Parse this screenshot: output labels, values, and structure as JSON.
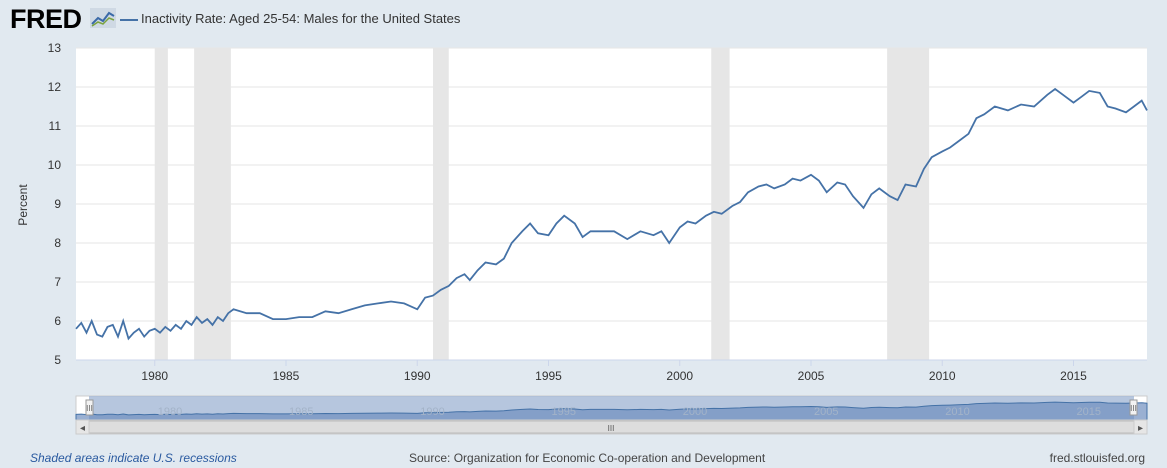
{
  "header": {
    "logo_text": "FRED",
    "logo_icon": "line-graph-icon",
    "legend_label": "Inactivity Rate: Aged 25-54: Males for the United States"
  },
  "footer": {
    "recession_note": "Shaded areas indicate U.S. recessions",
    "source": "Source: Organization for Economic Co-operation and Development",
    "site": "fred.stlouisfed.org"
  },
  "navigator": {
    "handle_icon": "grip-icon",
    "left_arrow": "◂",
    "right_arrow": "▸",
    "scroll_grip": "III",
    "labels": [
      "1980",
      "1985",
      "1990",
      "1995",
      "2000",
      "2005",
      "2010",
      "2015"
    ]
  },
  "colors": {
    "series": "#4572a7",
    "recession": "#e6e6e6",
    "nav_fill": "#9db3d3"
  },
  "chart_data": {
    "type": "line",
    "title": "Inactivity Rate: Aged 25-54: Males for the United States",
    "xlabel": "",
    "ylabel": "Percent",
    "xlim": [
      1977.0,
      2017.8
    ],
    "ylim": [
      5,
      13
    ],
    "yticks": [
      "5",
      "6",
      "7",
      "8",
      "9",
      "10",
      "11",
      "12",
      "13"
    ],
    "xticks": [
      "1980",
      "1985",
      "1990",
      "1995",
      "2000",
      "2005",
      "2010",
      "2015"
    ],
    "grid": true,
    "recessions": [
      [
        1980.0,
        1980.5
      ],
      [
        1981.5,
        1982.9
      ],
      [
        1990.6,
        1991.2
      ],
      [
        2001.2,
        2001.9
      ],
      [
        2007.9,
        2009.5
      ]
    ],
    "series": [
      {
        "name": "Inactivity Rate: Aged 25-54: Males for the United States",
        "x": [
          1977.0,
          1977.2,
          1977.4,
          1977.6,
          1977.8,
          1978.0,
          1978.2,
          1978.4,
          1978.6,
          1978.8,
          1979.0,
          1979.2,
          1979.4,
          1979.6,
          1979.8,
          1980.0,
          1980.2,
          1980.4,
          1980.6,
          1980.8,
          1981.0,
          1981.2,
          1981.4,
          1981.6,
          1981.8,
          1982.0,
          1982.2,
          1982.4,
          1982.6,
          1982.8,
          1983.0,
          1983.5,
          1984.0,
          1984.5,
          1985.0,
          1985.5,
          1986.0,
          1986.5,
          1987.0,
          1987.5,
          1988.0,
          1988.5,
          1989.0,
          1989.5,
          1990.0,
          1990.3,
          1990.6,
          1990.9,
          1991.2,
          1991.5,
          1991.8,
          1992.0,
          1992.3,
          1992.6,
          1993.0,
          1993.3,
          1993.6,
          1994.0,
          1994.3,
          1994.6,
          1995.0,
          1995.3,
          1995.6,
          1996.0,
          1996.3,
          1996.6,
          1997.0,
          1997.5,
          1998.0,
          1998.5,
          1999.0,
          1999.3,
          1999.6,
          2000.0,
          2000.3,
          2000.6,
          2001.0,
          2001.3,
          2001.6,
          2002.0,
          2002.3,
          2002.6,
          2003.0,
          2003.3,
          2003.6,
          2004.0,
          2004.3,
          2004.6,
          2005.0,
          2005.3,
          2005.6,
          2006.0,
          2006.3,
          2006.6,
          2007.0,
          2007.3,
          2007.6,
          2008.0,
          2008.3,
          2008.6,
          2009.0,
          2009.3,
          2009.6,
          2010.0,
          2010.3,
          2010.6,
          2011.0,
          2011.3,
          2011.6,
          2012.0,
          2012.5,
          2013.0,
          2013.5,
          2014.0,
          2014.3,
          2014.6,
          2015.0,
          2015.3,
          2015.6,
          2016.0,
          2016.3,
          2016.6,
          2017.0,
          2017.3,
          2017.6,
          2017.8
        ],
        "values": [
          5.8,
          5.95,
          5.7,
          6.0,
          5.65,
          5.6,
          5.85,
          5.9,
          5.6,
          6.0,
          5.55,
          5.7,
          5.8,
          5.6,
          5.75,
          5.8,
          5.7,
          5.85,
          5.75,
          5.9,
          5.8,
          6.0,
          5.9,
          6.1,
          5.95,
          6.05,
          5.9,
          6.1,
          6.0,
          6.2,
          6.3,
          6.2,
          6.2,
          6.05,
          6.05,
          6.1,
          6.1,
          6.25,
          6.2,
          6.3,
          6.4,
          6.45,
          6.5,
          6.45,
          6.3,
          6.6,
          6.65,
          6.8,
          6.9,
          7.1,
          7.2,
          7.05,
          7.3,
          7.5,
          7.45,
          7.6,
          8.0,
          8.3,
          8.5,
          8.25,
          8.2,
          8.5,
          8.7,
          8.5,
          8.15,
          8.3,
          8.3,
          8.3,
          8.1,
          8.3,
          8.2,
          8.3,
          8.0,
          8.4,
          8.55,
          8.5,
          8.7,
          8.8,
          8.75,
          8.95,
          9.05,
          9.3,
          9.45,
          9.5,
          9.4,
          9.5,
          9.65,
          9.6,
          9.75,
          9.6,
          9.3,
          9.55,
          9.5,
          9.2,
          8.9,
          9.25,
          9.4,
          9.2,
          9.1,
          9.5,
          9.45,
          9.9,
          10.2,
          10.35,
          10.45,
          10.6,
          10.8,
          11.2,
          11.3,
          11.5,
          11.4,
          11.55,
          11.5,
          11.8,
          11.95,
          11.8,
          11.6,
          11.75,
          11.9,
          11.85,
          11.5,
          11.45,
          11.35,
          11.5,
          11.65,
          11.4
        ]
      }
    ]
  }
}
